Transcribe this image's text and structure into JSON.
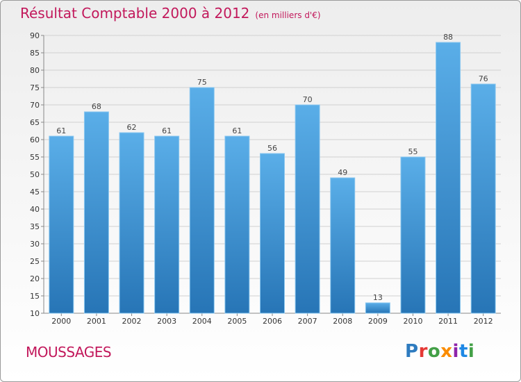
{
  "header": {
    "title": "Résultat Comptable 2000 à 2012",
    "subtitle": "(en milliers d'€)"
  },
  "footer": {
    "town": "MOUSSAGES",
    "logo_letters": [
      {
        "char": "P",
        "color": "#2e7bbf"
      },
      {
        "char": "r",
        "color": "#e53935"
      },
      {
        "char": "o",
        "color": "#43a047"
      },
      {
        "char": "x",
        "color": "#fb8c00"
      },
      {
        "char": "i",
        "color": "#8e24aa"
      },
      {
        "char": "t",
        "color": "#1e88e5"
      },
      {
        "char": "i",
        "color": "#43a047"
      }
    ]
  },
  "colors": {
    "bar_top": "#5aaee8",
    "bar_bottom": "#2775b6",
    "grid": "#d0d0d0",
    "accent": "#c2185b"
  },
  "chart_data": {
    "type": "bar",
    "title": "Résultat Comptable 2000 à 2012",
    "subtitle": "(en milliers d'€)",
    "categories": [
      "2000",
      "2001",
      "2002",
      "2003",
      "2004",
      "2005",
      "2006",
      "2007",
      "2008",
      "2009",
      "2010",
      "2011",
      "2012"
    ],
    "values": [
      61,
      68,
      62,
      61,
      75,
      61,
      56,
      70,
      49,
      13,
      55,
      88,
      76
    ],
    "ylim": [
      10,
      90
    ],
    "yticks": [
      10,
      15,
      20,
      25,
      30,
      35,
      40,
      45,
      50,
      55,
      60,
      65,
      70,
      75,
      80,
      85,
      90
    ],
    "grid": true
  }
}
